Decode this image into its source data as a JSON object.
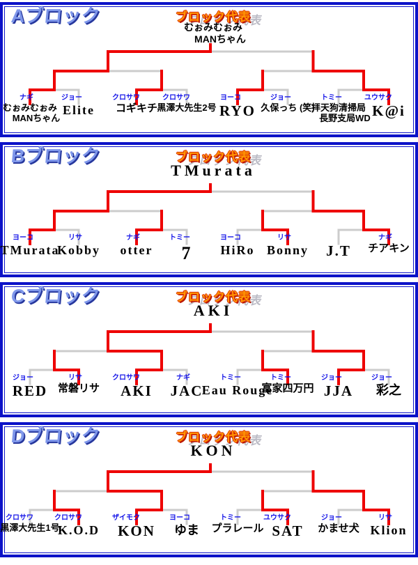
{
  "header_label": "ブロック代表",
  "colors": {
    "win_line": "#ee0000",
    "lose_line": "#cccccc",
    "tag_blue": "#1414e8",
    "title_blue": "#7f97ea",
    "rep_orange": "#ff9703",
    "border_blue": "#0c12c8"
  },
  "blocks": [
    {
      "title": "Aブロック",
      "champion_lines": [
        "むぉみむぉみ",
        "MANちゃん"
      ],
      "players": [
        {
          "label": "ナギ",
          "name_lines": [
            "むぉみむぉみ",
            "MANちゃん"
          ]
        },
        {
          "label": "ジョー",
          "name_lines": [
            "Elite"
          ]
        },
        {
          "label": "クロサワ",
          "name_lines": [
            "コギキチ"
          ]
        },
        {
          "label": "クロサワ",
          "name_lines": [
            "黒澤大先生2号"
          ]
        },
        {
          "label": "ヨーコ",
          "name_lines": [
            "RYO"
          ]
        },
        {
          "label": "ジョー",
          "name_lines": [
            "久保っち (笑)"
          ]
        },
        {
          "label": "トミー",
          "name_lines": [
            "拝天狗清掃局",
            "長野支局WD"
          ]
        },
        {
          "label": "ユウサク",
          "name_lines": [
            "K@i"
          ]
        }
      ],
      "results": {
        "r1": [
          "left",
          "left",
          "left",
          "right"
        ],
        "sf": [
          "left",
          "right"
        ],
        "final": "left"
      }
    },
    {
      "title": "Bブロック",
      "champion_lines": [
        "TMurata"
      ],
      "players": [
        {
          "label": "ヨーコ",
          "name_lines": [
            "TMurata"
          ]
        },
        {
          "label": "リサ",
          "name_lines": [
            "Kobby"
          ]
        },
        {
          "label": "ナギ",
          "name_lines": [
            "otter"
          ]
        },
        {
          "label": "トミー",
          "name_lines": [
            "7"
          ]
        },
        {
          "label": "ヨーコ",
          "name_lines": [
            "HiRo"
          ]
        },
        {
          "label": "リサ",
          "name_lines": [
            "Bonny"
          ]
        },
        {
          "label": "",
          "name_lines": [
            "J.T"
          ]
        },
        {
          "label": "ナギ",
          "name_lines": [
            "チアキン"
          ]
        }
      ],
      "results": {
        "r1": [
          "left",
          "left",
          "right",
          "right"
        ],
        "sf": [
          "left",
          "right"
        ],
        "final": "left"
      }
    },
    {
      "title": "Cブロック",
      "champion_lines": [
        "AKI"
      ],
      "players": [
        {
          "label": "ジョー",
          "name_lines": [
            "RED"
          ]
        },
        {
          "label": "リサ",
          "name_lines": [
            "常磐リサ"
          ]
        },
        {
          "label": "クロサワ",
          "name_lines": [
            "AKI"
          ]
        },
        {
          "label": "ナギ",
          "name_lines": [
            "JAC"
          ]
        },
        {
          "label": "トミー",
          "name_lines": [
            "Eau Rouge"
          ]
        },
        {
          "label": "トミー",
          "name_lines": [
            "富家四万円"
          ]
        },
        {
          "label": "ジョー",
          "name_lines": [
            "JJA"
          ]
        },
        {
          "label": "ジョー",
          "name_lines": [
            "彩之"
          ]
        }
      ],
      "results": {
        "r1": [
          "right",
          "left",
          "right",
          "left"
        ],
        "sf": [
          "right",
          "right"
        ],
        "final": "left"
      }
    },
    {
      "title": "Dブロック",
      "champion_lines": [
        "KON"
      ],
      "players": [
        {
          "label": "クロサワ",
          "name_lines": [
            "黒澤大先生1号"
          ]
        },
        {
          "label": "クロサワ",
          "name_lines": [
            "K.O.D"
          ]
        },
        {
          "label": "ザイモク",
          "name_lines": [
            "KON"
          ]
        },
        {
          "label": "ヨーコ",
          "name_lines": [
            "ゆま"
          ]
        },
        {
          "label": "トミー",
          "name_lines": [
            "プラレール"
          ]
        },
        {
          "label": "ユウサク",
          "name_lines": [
            "SAT"
          ]
        },
        {
          "label": "ジョー",
          "name_lines": [
            "かませ犬"
          ]
        },
        {
          "label": "リサ",
          "name_lines": [
            "Klion"
          ]
        }
      ],
      "results": {
        "r1": [
          "right",
          "left",
          "right",
          "right"
        ],
        "sf": [
          "right",
          "right"
        ],
        "final": "left"
      }
    }
  ]
}
